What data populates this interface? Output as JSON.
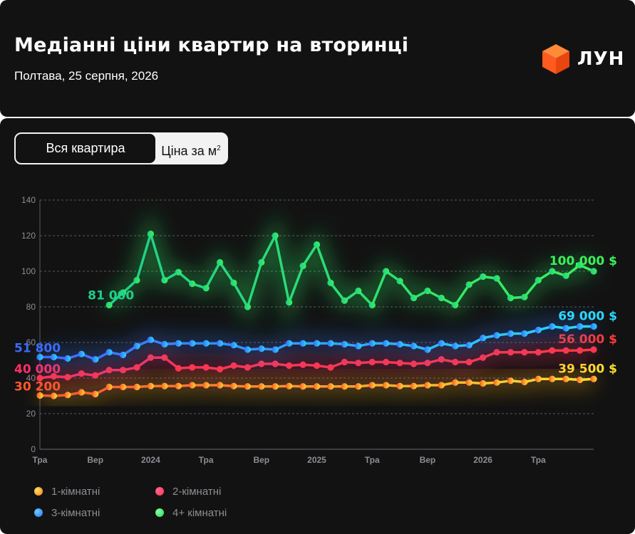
{
  "header": {
    "title": "Медіанні ціни квартир на вторинці",
    "subtitle": "Полтава, 25 серпня, 2026",
    "brand": "ЛУН",
    "brand_icon": "cube-logo-icon",
    "brand_color": "#ff5a1f"
  },
  "toggle": {
    "active_label": "Вся квартира",
    "inactive_label": "Ціна за м",
    "inactive_sup": "2"
  },
  "chart_data": {
    "type": "line",
    "ylim": [
      0,
      140
    ],
    "yticks": [
      0,
      20,
      40,
      60,
      80,
      100,
      120,
      140
    ],
    "grid": true,
    "legend_placement": "bottom-left",
    "x_ticks": [
      {
        "index": 0,
        "label": "Тра"
      },
      {
        "index": 4,
        "label": "Вер"
      },
      {
        "index": 8,
        "label": "2024"
      },
      {
        "index": 12,
        "label": "Тра"
      },
      {
        "index": 16,
        "label": "Вер"
      },
      {
        "index": 20,
        "label": "2025"
      },
      {
        "index": 24,
        "label": "Тра"
      },
      {
        "index": 28,
        "label": "Вер"
      },
      {
        "index": 32,
        "label": "2026"
      },
      {
        "index": 36,
        "label": "Тра"
      }
    ],
    "series": [
      {
        "name": "1-кімнатні",
        "color": "#ffb21f",
        "color_start": "#ff5a2a",
        "color_end": "#ffe030",
        "start_label": "30 200",
        "end_label": "39 500 $",
        "values": [
          30.2,
          30,
          30.5,
          32,
          31,
          35,
          35,
          35,
          35.5,
          35.5,
          35.5,
          36,
          36,
          36,
          35.5,
          35.3,
          35.3,
          35.3,
          35.5,
          35.3,
          35.3,
          35.3,
          35.3,
          35.3,
          36,
          36,
          35.5,
          35.5,
          36,
          36,
          37.5,
          37.5,
          37,
          37.5,
          38.5,
          37.8,
          39.5,
          39.5,
          39.5,
          39,
          39.5
        ],
        "start_index": 0
      },
      {
        "name": "2-кімнатні",
        "color": "#ff2f5a",
        "color_start": "#ff2f66",
        "color_end": "#ff3a3a",
        "start_label": "40 000",
        "end_label": "56 000 $",
        "values": [
          40,
          41,
          40.5,
          42.5,
          41.5,
          44.5,
          44.5,
          46,
          51.5,
          51.5,
          45.5,
          46,
          46,
          45,
          47,
          46,
          48,
          48,
          47,
          47.5,
          47,
          46,
          49,
          48.5,
          49,
          49,
          48.5,
          48,
          48.5,
          50.5,
          49,
          49,
          51.5,
          54.5,
          54.5,
          54.5,
          54.5,
          55.5,
          55.5,
          55.5,
          56
        ],
        "start_index": 0
      },
      {
        "name": "3-кімнатні",
        "color": "#2a7cff",
        "color_start": "#3a6bff",
        "color_end": "#2ad8ff",
        "start_label": "51 800",
        "end_label": "69 000 $",
        "values": [
          51.8,
          51.8,
          51,
          53.5,
          50.5,
          54.5,
          53,
          58,
          61.5,
          59,
          59.5,
          59.5,
          59.5,
          59.5,
          58.5,
          56,
          56.5,
          56,
          59.5,
          59.5,
          59.5,
          59.5,
          59,
          58,
          59.5,
          59.5,
          59,
          58,
          56,
          59.5,
          58,
          58.5,
          62.5,
          64,
          65,
          65,
          67,
          69,
          68,
          69,
          69
        ],
        "start_index": 0
      },
      {
        "name": "4+ кімнатні",
        "color": "#26e860",
        "color_start": "#1fcf88",
        "color_end": "#3cf05a",
        "start_label": "81 000",
        "end_label": "100,000 $",
        "values": [
          81,
          88,
          95,
          121,
          95,
          99.5,
          93,
          90.5,
          105,
          93.5,
          80,
          105,
          120,
          82.5,
          103,
          115,
          93.5,
          83.5,
          89,
          81,
          100,
          94.5,
          85,
          89,
          85,
          81,
          92.5,
          97,
          96,
          85,
          85.5,
          95,
          100,
          97.5,
          103.5,
          100
        ],
        "start_index": 5
      }
    ]
  },
  "legend": [
    {
      "label": "1-кімнатні",
      "color": "#ff9a1f"
    },
    {
      "label": "2-кімнатні",
      "color": "#ff2f5a"
    },
    {
      "label": "3-кімнатні",
      "color": "#2a8cff"
    },
    {
      "label": "4+ кімнатні",
      "color": "#26e860"
    }
  ]
}
